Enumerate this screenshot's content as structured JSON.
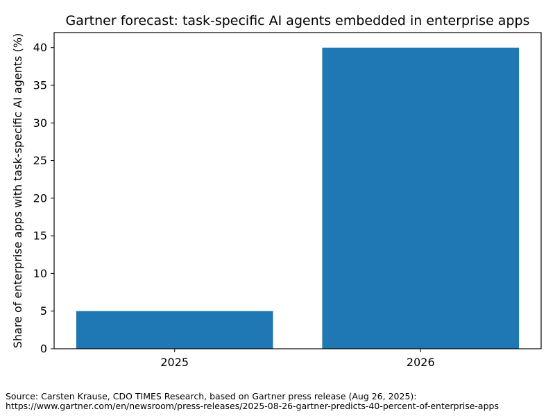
{
  "chart_data": {
    "type": "bar",
    "title": "Gartner forecast: task-specific AI agents embedded in enterprise apps",
    "xlabel": "",
    "ylabel": "Share of enterprise apps with task-specific AI agents (%)",
    "categories": [
      "2025",
      "2026"
    ],
    "values": [
      5,
      40
    ],
    "ylim": [
      0,
      42
    ],
    "yticks": [
      0,
      5,
      10,
      15,
      20,
      25,
      30,
      35,
      40
    ],
    "bar_color": "#1f77b4",
    "grid": false,
    "legend": "none"
  },
  "source": {
    "line1": "Source: Carsten Krause, CDO TIMES Research, based on Gartner press release (Aug 26, 2025):",
    "line2": "https://www.gartner.com/en/newsroom/press-releases/2025-08-26-gartner-predicts-40-percent-of-enterprise-apps"
  }
}
